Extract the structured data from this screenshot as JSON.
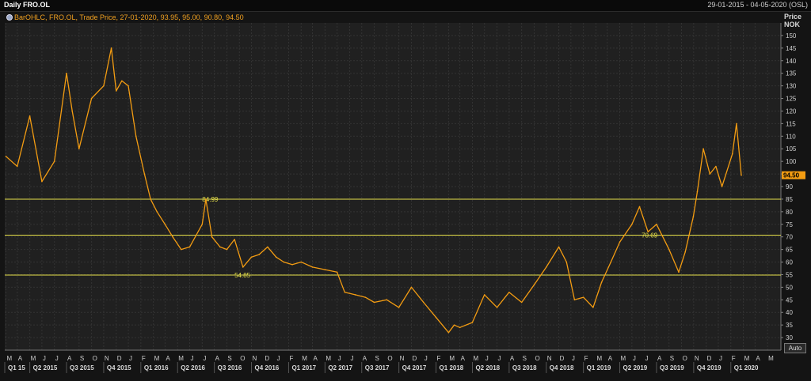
{
  "header": {
    "title": "Daily FRO.OL",
    "date_range": "29-01-2015 - 04-05-2020 (OSL)"
  },
  "legend": {
    "text": "BarOHLC, FRO.OL, Trade Price, 27-01-2020, 93.95, 95.00, 90.80, 94.50",
    "icon": "series-dot-icon"
  },
  "axis": {
    "price_label": "Price",
    "currency_label": "NOK",
    "auto_label": "Auto"
  },
  "chart_data": {
    "type": "line",
    "series": [
      {
        "name": "FRO.OL",
        "color": "#f39c12",
        "x": [
          "2015-02-01",
          "2015-03-01",
          "2015-04-01",
          "2015-05-01",
          "2015-06-01",
          "2015-07-01",
          "2015-07-15",
          "2015-08-01",
          "2015-09-01",
          "2015-10-01",
          "2015-10-20",
          "2015-11-01",
          "2015-11-15",
          "2015-12-01",
          "2015-12-20",
          "2016-01-10",
          "2016-01-25",
          "2016-02-10",
          "2016-03-01",
          "2016-03-20",
          "2016-04-10",
          "2016-05-01",
          "2016-06-01",
          "2016-06-10",
          "2016-06-25",
          "2016-07-15",
          "2016-08-01",
          "2016-08-20",
          "2016-09-10",
          "2016-10-01",
          "2016-10-20",
          "2016-11-10",
          "2016-12-01",
          "2016-12-20",
          "2017-01-10",
          "2017-02-01",
          "2017-03-01",
          "2017-04-01",
          "2017-05-01",
          "2017-05-20",
          "2017-06-15",
          "2017-07-10",
          "2017-08-01",
          "2017-09-01",
          "2017-10-01",
          "2017-11-01",
          "2017-12-01",
          "2018-01-01",
          "2018-02-01",
          "2018-02-15",
          "2018-03-01",
          "2018-04-01",
          "2018-05-01",
          "2018-06-01",
          "2018-07-01",
          "2018-08-01",
          "2018-09-01",
          "2018-10-01",
          "2018-11-01",
          "2018-11-20",
          "2018-12-10",
          "2019-01-01",
          "2019-01-25",
          "2019-02-15",
          "2019-03-10",
          "2019-04-01",
          "2019-05-01",
          "2019-05-20",
          "2019-06-10",
          "2019-07-01",
          "2019-08-01",
          "2019-08-25",
          "2019-09-10",
          "2019-09-30",
          "2019-10-10",
          "2019-10-25",
          "2019-11-10",
          "2019-11-25",
          "2019-12-10",
          "2020-01-05",
          "2020-01-15",
          "2020-01-27"
        ],
        "values": [
          102,
          98,
          118,
          92,
          100,
          135,
          120,
          105,
          125,
          130,
          145,
          128,
          132,
          130,
          110,
          95,
          85,
          80,
          75,
          70,
          65,
          66,
          75,
          84.99,
          70,
          66,
          65,
          69,
          58,
          62,
          63,
          66,
          62,
          60,
          59,
          60,
          58,
          57,
          56,
          48,
          47,
          46,
          44,
          45,
          42,
          50,
          44,
          38,
          32,
          35,
          34,
          36,
          47,
          42,
          48,
          44,
          51,
          58,
          66,
          60,
          45,
          46,
          42,
          52,
          60,
          68,
          75,
          82,
          72,
          75,
          65,
          56,
          64,
          78,
          88,
          105,
          95,
          98,
          90,
          103,
          115,
          94.5
        ]
      }
    ],
    "reference_lines": [
      84.99,
      70.69,
      54.85
    ],
    "last_value": 94.5,
    "last_value_label": "94.50",
    "ylim": [
      25,
      155
    ],
    "y_ticks": [
      30,
      35,
      40,
      45,
      50,
      55,
      60,
      65,
      70,
      75,
      80,
      85,
      90,
      95,
      100,
      105,
      110,
      115,
      120,
      125,
      130,
      135,
      140,
      145,
      150
    ],
    "x_start": "2015-01-29",
    "x_end": "2020-05-04",
    "month_labels": [
      "F",
      "M",
      "A",
      "M",
      "J",
      "J",
      "A",
      "S",
      "O",
      "N",
      "D",
      "J",
      "F",
      "M",
      "A",
      "M",
      "J",
      "J",
      "A",
      "S",
      "O",
      "N",
      "D",
      "J",
      "F",
      "M",
      "A",
      "M",
      "J",
      "J",
      "A",
      "S",
      "O",
      "N",
      "D",
      "J",
      "F",
      "M",
      "A",
      "M",
      "J",
      "J",
      "A",
      "S",
      "O",
      "N",
      "D",
      "J",
      "F",
      "M",
      "A",
      "M",
      "J",
      "J",
      "A",
      "S",
      "O",
      "N",
      "D",
      "J",
      "F",
      "M",
      "A",
      "M"
    ],
    "quarter_labels": [
      "Q1 15",
      "Q2 2015",
      "Q3 2015",
      "Q4 2015",
      "Q1 2016",
      "Q2 2016",
      "Q3 2016",
      "Q4 2016",
      "Q1 2017",
      "Q2 2017",
      "Q3 2017",
      "Q4 2017",
      "Q1 2018",
      "Q2 2018",
      "Q3 2018",
      "Q4 2018",
      "Q1 2019",
      "Q2 2019",
      "Q3 2019",
      "Q4 2019",
      "Q1 2020"
    ],
    "grid": true
  }
}
